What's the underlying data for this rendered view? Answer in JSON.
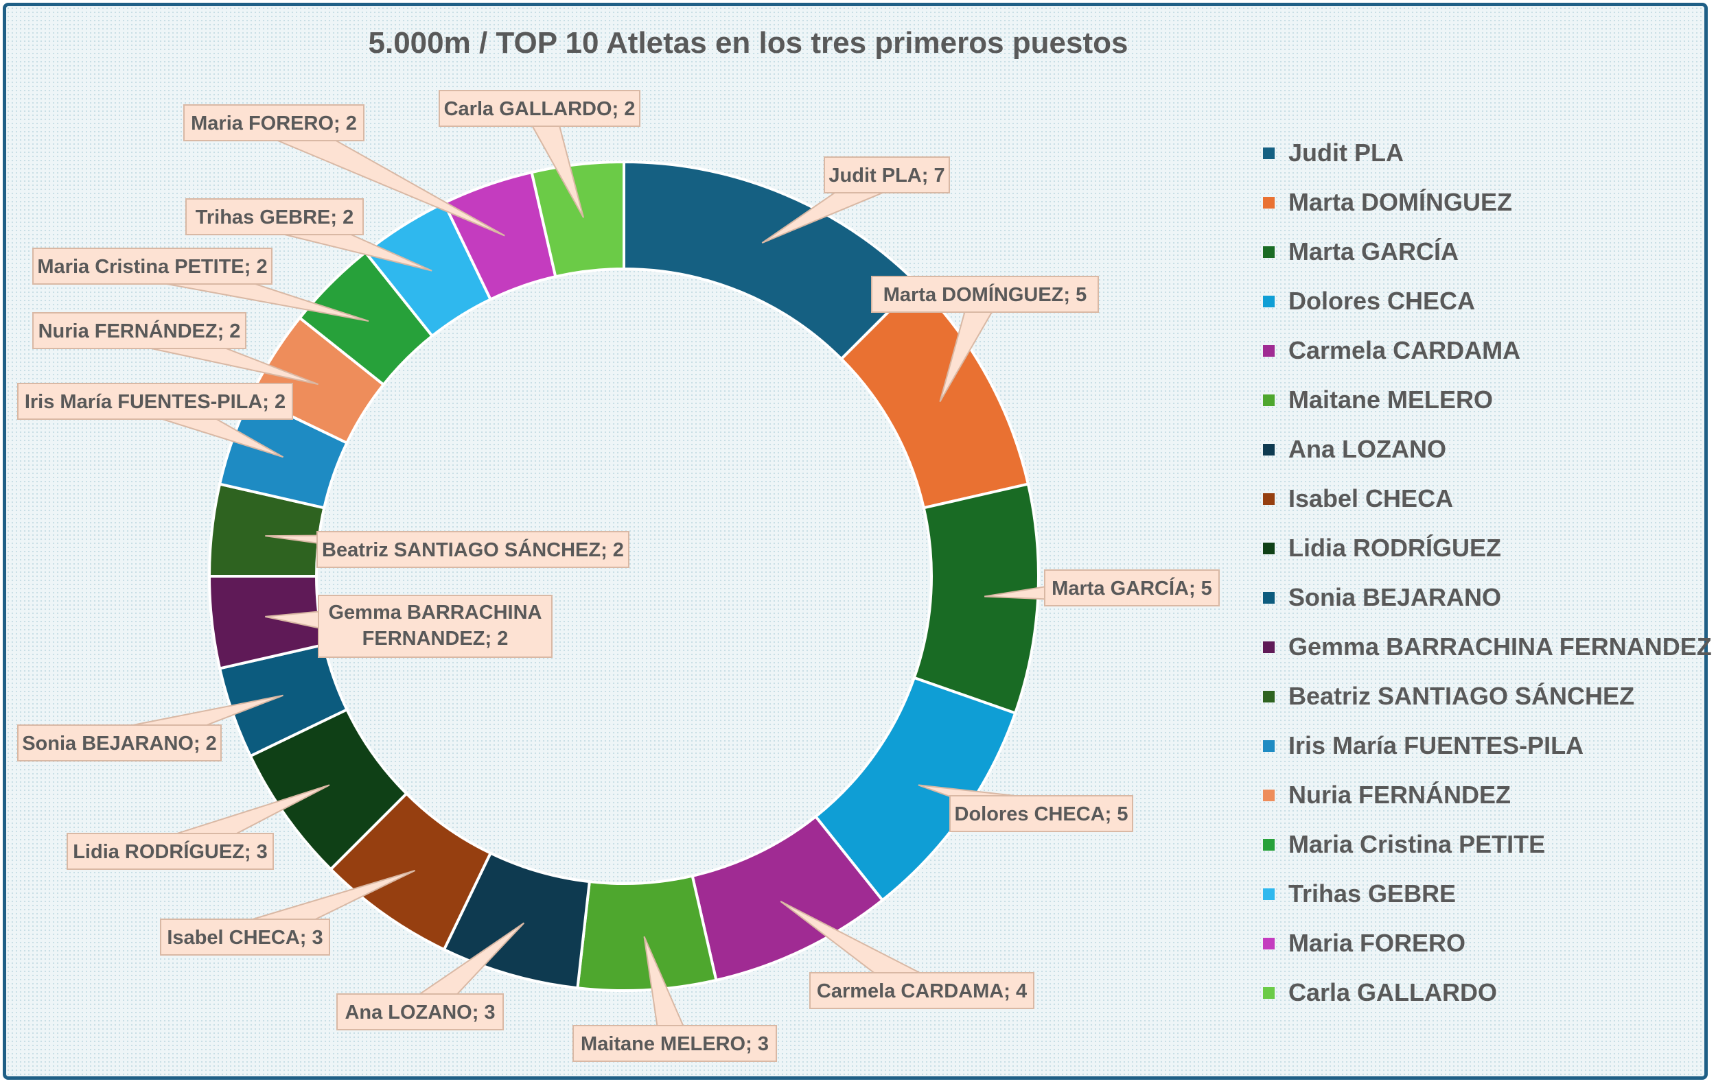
{
  "chart_data": {
    "type": "pie",
    "subtype": "doughnut",
    "title": "5.000m / TOP 10 Atletas en los tres primeros puestos",
    "label_separator": "; ",
    "slices": [
      {
        "label": "Judit PLA",
        "value": 7,
        "color": "#156082"
      },
      {
        "label": "Marta DOMÍNGUEZ",
        "value": 5,
        "color": "#e97132"
      },
      {
        "label": "Marta GARCÍA",
        "value": 5,
        "color": "#196b24"
      },
      {
        "label": "Dolores CHECA",
        "value": 5,
        "color": "#0f9ed5"
      },
      {
        "label": "Carmela CARDAMA",
        "value": 4,
        "color": "#a02b93"
      },
      {
        "label": "Maitane MELERO",
        "value": 3,
        "color": "#4ea72e"
      },
      {
        "label": "Ana LOZANO",
        "value": 3,
        "color": "#0e3a50"
      },
      {
        "label": "Isabel CHECA",
        "value": 3,
        "color": "#963f10"
      },
      {
        "label": "Lidia RODRÍGUEZ",
        "value": 3,
        "color": "#0f4016"
      },
      {
        "label": "Sonia BEJARANO",
        "value": 2,
        "color": "#0c5b7e"
      },
      {
        "label": "Gemma BARRACHINA FERNANDEZ",
        "value": 2,
        "color": "#5f1a57"
      },
      {
        "label": "Beatriz SANTIAGO SÁNCHEZ",
        "value": 2,
        "color": "#2e6320"
      },
      {
        "label": "Iris María FUENTES-PILA",
        "value": 2,
        "color": "#1e8bc3"
      },
      {
        "label": "Nuria FERNÁNDEZ",
        "value": 2,
        "color": "#ee8d5b"
      },
      {
        "label": "Maria Cristina PETITE",
        "value": 2,
        "color": "#27a13a"
      },
      {
        "label": "Trihas GEBRE",
        "value": 2,
        "color": "#2fb8ee"
      },
      {
        "label": "Maria FORERO",
        "value": 2,
        "color": "#c43cbf"
      },
      {
        "label": "Carla GALLARDO",
        "value": 2,
        "color": "#6bcb47"
      }
    ],
    "legend_position": "right",
    "label_style": {
      "box_fill": "#fde2d3",
      "box_stroke": "#d9b8a4",
      "text_color": "#595959"
    }
  }
}
